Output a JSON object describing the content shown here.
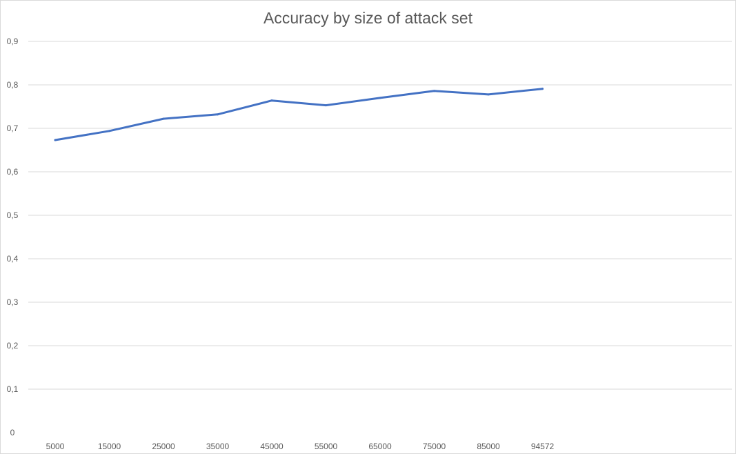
{
  "chart_data": {
    "type": "line",
    "title": "Accuracy by size of attack set",
    "xlabel": "",
    "ylabel": "",
    "categories": [
      "5000",
      "15000",
      "25000",
      "35000",
      "45000",
      "55000",
      "65000",
      "75000",
      "85000",
      "94572"
    ],
    "y_tick_labels": [
      "0",
      "0,1",
      "0,2",
      "0,3",
      "0,4",
      "0,5",
      "0,6",
      "0,7",
      "0,8",
      "0,9"
    ],
    "ylim": [
      0,
      0.9
    ],
    "grid": true,
    "legend": "none",
    "series": [
      {
        "color": "#4472c4",
        "values": [
          0.673,
          0.694,
          0.722,
          0.732,
          0.764,
          0.753,
          0.77,
          0.786,
          0.778,
          0.791
        ]
      }
    ]
  }
}
